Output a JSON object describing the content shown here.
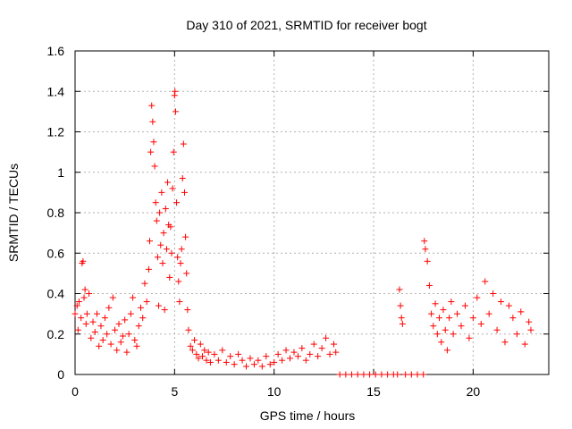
{
  "chart_data": {
    "type": "scatter",
    "title": "Day 310 of 2021, SRMTID for receiver bogt",
    "xlabel": "GPS time / hours",
    "ylabel": "SRMTID / TECUs",
    "xlim": [
      0,
      23.8
    ],
    "ylim": [
      0,
      1.6
    ],
    "x_ticks": [
      0,
      5,
      10,
      15,
      20
    ],
    "x_tick_labels": [
      "0",
      "5",
      "10",
      "15",
      "20"
    ],
    "y_ticks": [
      0,
      0.2,
      0.4,
      0.6,
      0.8,
      1.0,
      1.2,
      1.4,
      1.6
    ],
    "y_tick_labels": [
      "0",
      "0.2",
      "0.4",
      "0.6",
      "0.8",
      "1",
      "1.2",
      "1.4",
      "1.6"
    ],
    "grid": true,
    "marker": "plus",
    "color": "#ff0000",
    "series": [
      {
        "name": "SRMTID",
        "points": [
          [
            0.0,
            0.3
          ],
          [
            0.1,
            0.34
          ],
          [
            0.15,
            0.22
          ],
          [
            0.2,
            0.36
          ],
          [
            0.3,
            0.28
          ],
          [
            0.35,
            0.55
          ],
          [
            0.4,
            0.56
          ],
          [
            0.45,
            0.38
          ],
          [
            0.5,
            0.42
          ],
          [
            0.55,
            0.25
          ],
          [
            0.6,
            0.3
          ],
          [
            0.7,
            0.4
          ],
          [
            0.8,
            0.18
          ],
          [
            0.9,
            0.26
          ],
          [
            1.0,
            0.21
          ],
          [
            1.1,
            0.3
          ],
          [
            1.2,
            0.14
          ],
          [
            1.3,
            0.24
          ],
          [
            1.4,
            0.17
          ],
          [
            1.5,
            0.28
          ],
          [
            1.6,
            0.2
          ],
          [
            1.7,
            0.33
          ],
          [
            1.8,
            0.15
          ],
          [
            1.9,
            0.38
          ],
          [
            2.0,
            0.22
          ],
          [
            2.1,
            0.12
          ],
          [
            2.2,
            0.25
          ],
          [
            2.3,
            0.16
          ],
          [
            2.4,
            0.19
          ],
          [
            2.5,
            0.27
          ],
          [
            2.6,
            0.11
          ],
          [
            2.7,
            0.2
          ],
          [
            2.8,
            0.3
          ],
          [
            2.9,
            0.38
          ],
          [
            3.0,
            0.17
          ],
          [
            3.1,
            0.14
          ],
          [
            3.2,
            0.24
          ],
          [
            3.3,
            0.33
          ],
          [
            3.4,
            0.28
          ],
          [
            3.5,
            0.45
          ],
          [
            3.6,
            0.36
          ],
          [
            3.7,
            0.52
          ],
          [
            3.75,
            0.66
          ],
          [
            3.8,
            1.1
          ],
          [
            3.85,
            1.33
          ],
          [
            3.9,
            1.25
          ],
          [
            3.95,
            1.15
          ],
          [
            4.0,
            1.03
          ],
          [
            4.05,
            0.85
          ],
          [
            4.1,
            0.76
          ],
          [
            4.15,
            0.58
          ],
          [
            4.2,
            0.34
          ],
          [
            4.25,
            0.8
          ],
          [
            4.3,
            0.64
          ],
          [
            4.35,
            0.9
          ],
          [
            4.4,
            0.55
          ],
          [
            4.45,
            0.7
          ],
          [
            4.5,
            0.32
          ],
          [
            4.55,
            0.82
          ],
          [
            4.6,
            0.62
          ],
          [
            4.65,
            0.95
          ],
          [
            4.7,
            0.74
          ],
          [
            4.75,
            0.48
          ],
          [
            4.8,
            0.73
          ],
          [
            4.85,
            0.6
          ],
          [
            4.9,
            0.92
          ],
          [
            4.95,
            1.1
          ],
          [
            5.0,
            1.38
          ],
          [
            5.02,
            1.4
          ],
          [
            5.05,
            1.3
          ],
          [
            5.1,
            0.85
          ],
          [
            5.15,
            0.58
          ],
          [
            5.2,
            0.46
          ],
          [
            5.25,
            0.36
          ],
          [
            5.3,
            0.55
          ],
          [
            5.35,
            0.62
          ],
          [
            5.4,
            0.97
          ],
          [
            5.45,
            1.14
          ],
          [
            5.5,
            0.9
          ],
          [
            5.55,
            0.68
          ],
          [
            5.6,
            0.5
          ],
          [
            5.65,
            0.32
          ],
          [
            5.7,
            0.22
          ],
          [
            5.8,
            0.14
          ],
          [
            5.9,
            0.12
          ],
          [
            6.0,
            0.17
          ],
          [
            6.1,
            0.1
          ],
          [
            6.2,
            0.08
          ],
          [
            6.3,
            0.15
          ],
          [
            6.4,
            0.09
          ],
          [
            6.5,
            0.12
          ],
          [
            6.6,
            0.07
          ],
          [
            6.7,
            0.11
          ],
          [
            6.8,
            0.06
          ],
          [
            7.0,
            0.1
          ],
          [
            7.2,
            0.07
          ],
          [
            7.4,
            0.12
          ],
          [
            7.6,
            0.06
          ],
          [
            7.8,
            0.09
          ],
          [
            8.0,
            0.05
          ],
          [
            8.2,
            0.1
          ],
          [
            8.4,
            0.07
          ],
          [
            8.6,
            0.04
          ],
          [
            8.8,
            0.08
          ],
          [
            9.0,
            0.05
          ],
          [
            9.2,
            0.07
          ],
          [
            9.4,
            0.04
          ],
          [
            9.6,
            0.09
          ],
          [
            9.8,
            0.05
          ],
          [
            10.0,
            0.06
          ],
          [
            10.2,
            0.1
          ],
          [
            10.4,
            0.07
          ],
          [
            10.6,
            0.12
          ],
          [
            10.8,
            0.08
          ],
          [
            11.0,
            0.11
          ],
          [
            11.2,
            0.09
          ],
          [
            11.4,
            0.13
          ],
          [
            11.6,
            0.07
          ],
          [
            11.8,
            0.1
          ],
          [
            12.0,
            0.15
          ],
          [
            12.2,
            0.09
          ],
          [
            12.4,
            0.13
          ],
          [
            12.6,
            0.18
          ],
          [
            12.8,
            0.1
          ],
          [
            13.0,
            0.15
          ],
          [
            13.1,
            0.11
          ],
          [
            13.3,
            0.0
          ],
          [
            13.6,
            0.0
          ],
          [
            13.9,
            0.0
          ],
          [
            14.2,
            0.0
          ],
          [
            14.5,
            0.0
          ],
          [
            14.8,
            0.0
          ],
          [
            15.1,
            0.0
          ],
          [
            15.4,
            0.0
          ],
          [
            15.7,
            0.0
          ],
          [
            16.0,
            0.0
          ],
          [
            16.2,
            0.0
          ],
          [
            16.3,
            0.42
          ],
          [
            16.35,
            0.34
          ],
          [
            16.4,
            0.28
          ],
          [
            16.45,
            0.25
          ],
          [
            16.6,
            0.0
          ],
          [
            16.9,
            0.0
          ],
          [
            17.2,
            0.0
          ],
          [
            17.5,
            0.0
          ],
          [
            17.55,
            0.66
          ],
          [
            17.6,
            0.62
          ],
          [
            17.7,
            0.56
          ],
          [
            17.8,
            0.44
          ],
          [
            17.9,
            0.3
          ],
          [
            18.0,
            0.24
          ],
          [
            18.1,
            0.35
          ],
          [
            18.2,
            0.2
          ],
          [
            18.3,
            0.28
          ],
          [
            18.4,
            0.16
          ],
          [
            18.5,
            0.32
          ],
          [
            18.6,
            0.22
          ],
          [
            18.7,
            0.12
          ],
          [
            18.8,
            0.28
          ],
          [
            18.9,
            0.36
          ],
          [
            19.0,
            0.2
          ],
          [
            19.2,
            0.3
          ],
          [
            19.4,
            0.24
          ],
          [
            19.6,
            0.34
          ],
          [
            19.8,
            0.18
          ],
          [
            20.0,
            0.28
          ],
          [
            20.2,
            0.38
          ],
          [
            20.4,
            0.25
          ],
          [
            20.6,
            0.46
          ],
          [
            20.8,
            0.3
          ],
          [
            21.0,
            0.4
          ],
          [
            21.2,
            0.22
          ],
          [
            21.4,
            0.36
          ],
          [
            21.6,
            0.16
          ],
          [
            21.8,
            0.34
          ],
          [
            22.0,
            0.28
          ],
          [
            22.2,
            0.2
          ],
          [
            22.4,
            0.31
          ],
          [
            22.6,
            0.15
          ],
          [
            22.8,
            0.26
          ],
          [
            22.9,
            0.22
          ]
        ]
      }
    ]
  }
}
